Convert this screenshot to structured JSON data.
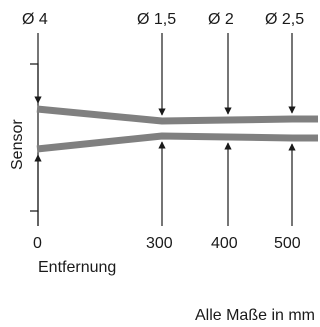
{
  "diameters": [
    "Ø 4",
    "Ø 1,5",
    "Ø 2",
    "Ø 2,5"
  ],
  "sensor_label": "Sensor",
  "x_ticks": [
    "0",
    "300",
    "400",
    "500"
  ],
  "x_label": "Entfernung",
  "footnote": "Alle Maße in mm",
  "chart_data": {
    "type": "line",
    "xlabel": "Entfernung",
    "x_ticks": [
      0,
      300,
      400,
      500
    ],
    "unit": "mm",
    "diameter_labels": [
      "Ø 4",
      "Ø 1,5",
      "Ø 2",
      "Ø 2,5"
    ],
    "positions": [
      0,
      300,
      400,
      500
    ]
  }
}
